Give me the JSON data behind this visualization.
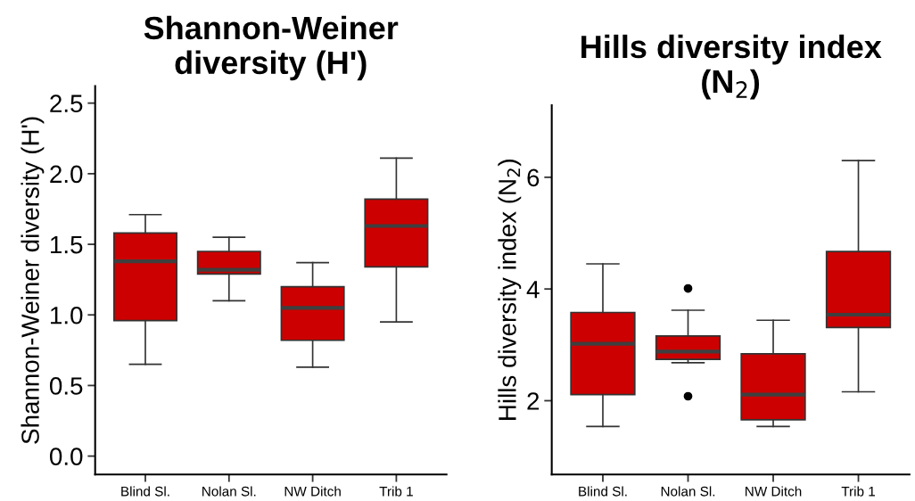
{
  "chart_data": [
    {
      "type": "box",
      "title": "Shannon-Weiner\ndiversity (H')",
      "ylabel": "Shannon-Weiner diversity (H')",
      "categories": [
        "Blind Sl.",
        "Nolan Sl.",
        "NW Ditch",
        "Trib 1"
      ],
      "color": "#cc0000",
      "ylim": [
        -0.13,
        2.62
      ],
      "yticks": [
        {
          "value": 0,
          "label": "0.0"
        },
        0.5,
        {
          "value": 1,
          "label": "1.0"
        },
        1.5,
        {
          "value": 2,
          "label": "2.0"
        },
        2.5
      ],
      "boxes": [
        {
          "low": 0.65,
          "q1": 0.96,
          "median": 1.38,
          "q3": 1.58,
          "high": 1.71
        },
        {
          "low": 1.1,
          "q1": 1.29,
          "median": 1.32,
          "q3": 1.45,
          "high": 1.55
        },
        {
          "low": 0.63,
          "q1": 0.82,
          "median": 1.05,
          "q3": 1.2,
          "high": 1.37
        },
        {
          "low": 0.95,
          "q1": 1.34,
          "median": 1.63,
          "q3": 1.82,
          "high": 2.11
        }
      ]
    },
    {
      "type": "box",
      "title": "Hills diversity index\n(N$_{2}$)",
      "ylabel": "Hills diversity index (N$_{2}$)",
      "categories": [
        "Blind Sl.",
        "Nolan Sl.",
        "NW Ditch",
        "Trib 1"
      ],
      "color": "#cc0000",
      "ylim": [
        0.68,
        7.29
      ],
      "yticks": [
        2,
        4,
        6
      ],
      "boxes": [
        {
          "low": 1.54,
          "q1": 2.11,
          "median": 3.02,
          "q3": 3.58,
          "high": 4.45
        },
        {
          "low": 2.68,
          "q1": 2.74,
          "median": 2.88,
          "q3": 3.16,
          "high": 3.62,
          "outliers": [
            4.01,
            2.08
          ]
        },
        {
          "low": 1.54,
          "q1": 1.66,
          "median": 2.11,
          "q3": 2.84,
          "high": 3.44
        },
        {
          "low": 2.16,
          "q1": 3.31,
          "median": 3.54,
          "q3": 4.67,
          "high": 6.3
        }
      ]
    }
  ]
}
